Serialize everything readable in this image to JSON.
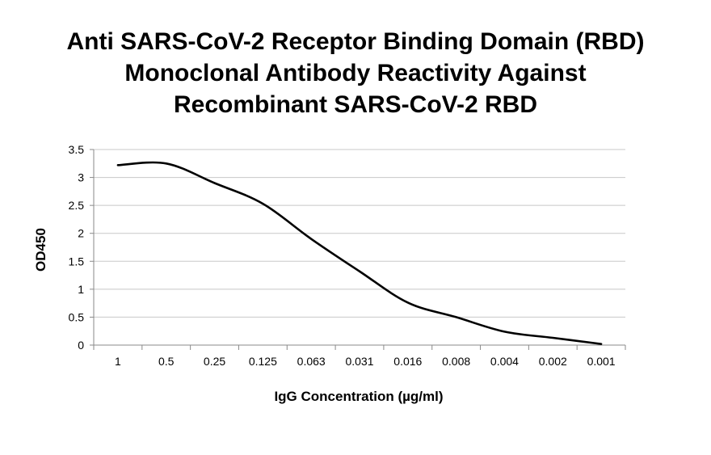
{
  "chart_data": {
    "type": "line",
    "title": "Anti SARS-CoV-2 Receptor Binding Domain (RBD) Monoclonal Antibody Reactivity Against Recombinant SARS-CoV-2 RBD",
    "title_lines": [
      "Anti SARS-CoV-2 Receptor Binding Domain (RBD)",
      "Monoclonal Antibody Reactivity Against",
      "Recombinant SARS-CoV-2 RBD"
    ],
    "xlabel": "IgG Concentration (µg/ml)",
    "ylabel": "OD450",
    "categories": [
      "1",
      "0.5",
      "0.25",
      "0.125",
      "0.063",
      "0.031",
      "0.016",
      "0.008",
      "0.004",
      "0.002",
      "0.001"
    ],
    "yticks": [
      "0",
      "0.5",
      "1",
      "1.5",
      "2",
      "2.5",
      "3",
      "3.5"
    ],
    "ylim": [
      0,
      3.5
    ],
    "grid": true,
    "series": [
      {
        "values": [
          3.22,
          3.25,
          2.9,
          2.53,
          1.9,
          1.32,
          0.76,
          0.5,
          0.24,
          0.13,
          0.02
        ],
        "color": "#000000"
      }
    ]
  }
}
